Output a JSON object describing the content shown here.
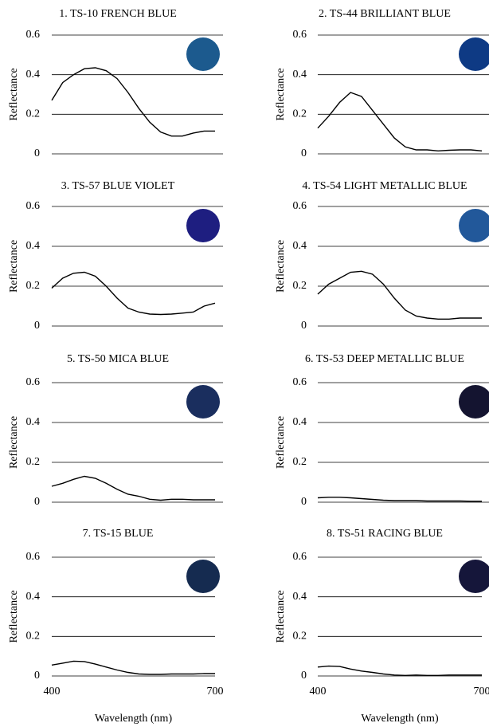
{
  "chart_data": [
    {
      "type": "line",
      "title": "1. TS-10 FRENCH BLUE",
      "ylabel": "Reflectance",
      "swatch_color": "#1c5a8e",
      "line_color": "#000000",
      "x": [
        400,
        420,
        440,
        460,
        480,
        500,
        520,
        540,
        560,
        580,
        600,
        620,
        640,
        660,
        680,
        700
      ],
      "values": [
        0.27,
        0.36,
        0.4,
        0.43,
        0.435,
        0.42,
        0.38,
        0.31,
        0.23,
        0.16,
        0.11,
        0.09,
        0.09,
        0.105,
        0.115,
        0.115
      ],
      "xlim": [
        400,
        700
      ],
      "ylim": [
        0,
        0.6
      ],
      "yticks": [
        0,
        0.2,
        0.4,
        0.6
      ],
      "grid": true
    },
    {
      "type": "line",
      "title": "2. TS-44 BRILLIANT BLUE",
      "ylabel": "Reflectance",
      "swatch_color": "#0e3a84",
      "line_color": "#000000",
      "x": [
        400,
        420,
        440,
        460,
        480,
        500,
        520,
        540,
        560,
        580,
        600,
        620,
        640,
        660,
        680,
        700
      ],
      "values": [
        0.13,
        0.19,
        0.26,
        0.31,
        0.29,
        0.22,
        0.15,
        0.08,
        0.035,
        0.02,
        0.02,
        0.015,
        0.018,
        0.02,
        0.02,
        0.015
      ],
      "xlim": [
        400,
        700
      ],
      "ylim": [
        0,
        0.6
      ],
      "yticks": [
        0,
        0.2,
        0.4,
        0.6
      ],
      "grid": true
    },
    {
      "type": "line",
      "title": "3. TS-57 BLUE VIOLET",
      "ylabel": "Reflectance",
      "swatch_color": "#1e1e80",
      "line_color": "#000000",
      "x": [
        400,
        420,
        440,
        460,
        480,
        500,
        520,
        540,
        560,
        580,
        600,
        620,
        640,
        660,
        680,
        700
      ],
      "values": [
        0.19,
        0.24,
        0.265,
        0.27,
        0.25,
        0.2,
        0.14,
        0.09,
        0.07,
        0.06,
        0.058,
        0.06,
        0.065,
        0.07,
        0.1,
        0.115
      ],
      "xlim": [
        400,
        700
      ],
      "ylim": [
        0,
        0.6
      ],
      "yticks": [
        0,
        0.2,
        0.4,
        0.6
      ],
      "grid": true
    },
    {
      "type": "line",
      "title": "4. TS-54 LIGHT METALLIC BLUE",
      "ylabel": "Reflectance",
      "swatch_color": "#22589a",
      "line_color": "#000000",
      "x": [
        400,
        420,
        440,
        460,
        480,
        500,
        520,
        540,
        560,
        580,
        600,
        620,
        640,
        660,
        680,
        700
      ],
      "values": [
        0.16,
        0.21,
        0.24,
        0.27,
        0.275,
        0.26,
        0.21,
        0.14,
        0.08,
        0.05,
        0.04,
        0.035,
        0.035,
        0.04,
        0.04,
        0.04
      ],
      "xlim": [
        400,
        700
      ],
      "ylim": [
        0,
        0.6
      ],
      "yticks": [
        0,
        0.2,
        0.4,
        0.6
      ],
      "grid": true
    },
    {
      "type": "line",
      "title": "5. TS-50 MICA BLUE",
      "ylabel": "Reflectance",
      "swatch_color": "#1a2e5e",
      "line_color": "#000000",
      "x": [
        400,
        420,
        440,
        460,
        480,
        500,
        520,
        540,
        560,
        580,
        600,
        620,
        640,
        660,
        680,
        700
      ],
      "values": [
        0.08,
        0.095,
        0.115,
        0.13,
        0.12,
        0.095,
        0.065,
        0.04,
        0.03,
        0.015,
        0.01,
        0.015,
        0.015,
        0.012,
        0.012,
        0.012
      ],
      "xlim": [
        400,
        700
      ],
      "ylim": [
        0,
        0.6
      ],
      "yticks": [
        0,
        0.2,
        0.4,
        0.6
      ],
      "grid": true
    },
    {
      "type": "line",
      "title": "6. TS-53 DEEP METALLIC BLUE",
      "ylabel": "Reflectance",
      "swatch_color": "#141430",
      "line_color": "#000000",
      "x": [
        400,
        420,
        440,
        460,
        480,
        500,
        520,
        540,
        560,
        580,
        600,
        620,
        640,
        660,
        680,
        700
      ],
      "values": [
        0.022,
        0.025,
        0.025,
        0.022,
        0.018,
        0.014,
        0.01,
        0.008,
        0.008,
        0.008,
        0.006,
        0.006,
        0.006,
        0.006,
        0.005,
        0.005
      ],
      "xlim": [
        400,
        700
      ],
      "ylim": [
        0,
        0.6
      ],
      "yticks": [
        0,
        0.2,
        0.4,
        0.6
      ],
      "grid": true
    },
    {
      "type": "line",
      "title": "7. TS-15 BLUE",
      "ylabel": "Reflectance",
      "xlabel": "Wavelength (nm)",
      "swatch_color": "#152b50",
      "line_color": "#000000",
      "x": [
        400,
        420,
        440,
        460,
        480,
        500,
        520,
        540,
        560,
        580,
        600,
        620,
        640,
        660,
        680,
        700
      ],
      "values": [
        0.055,
        0.065,
        0.075,
        0.073,
        0.06,
        0.045,
        0.03,
        0.018,
        0.01,
        0.008,
        0.008,
        0.01,
        0.01,
        0.01,
        0.012,
        0.012
      ],
      "xlim": [
        400,
        700
      ],
      "xticks": [
        400,
        700
      ],
      "ylim": [
        0,
        0.6
      ],
      "yticks": [
        0,
        0.2,
        0.4,
        0.6
      ],
      "grid": true
    },
    {
      "type": "line",
      "title": "8. TS-51 RACING BLUE",
      "ylabel": "Reflectance",
      "xlabel": "Wavelength (nm)",
      "swatch_color": "#15163a",
      "line_color": "#000000",
      "x": [
        400,
        420,
        440,
        460,
        480,
        500,
        520,
        540,
        560,
        580,
        600,
        620,
        640,
        660,
        680,
        700
      ],
      "values": [
        0.045,
        0.05,
        0.048,
        0.035,
        0.025,
        0.018,
        0.01,
        0.005,
        0.003,
        0.005,
        0.003,
        0.003,
        0.005,
        0.005,
        0.005,
        0.005
      ],
      "xlim": [
        400,
        700
      ],
      "xticks": [
        400,
        700
      ],
      "ylim": [
        0,
        0.6
      ],
      "yticks": [
        0,
        0.2,
        0.4,
        0.6
      ],
      "grid": true
    }
  ]
}
